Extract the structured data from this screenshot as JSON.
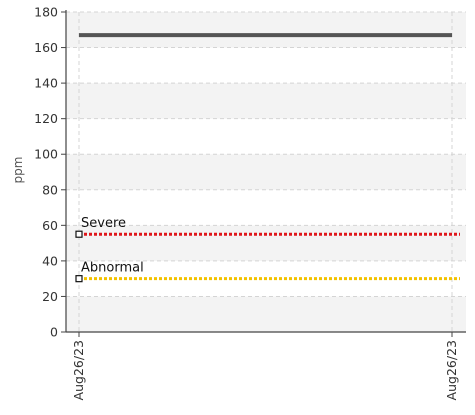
{
  "chart_data": {
    "type": "line",
    "ylabel": "ppm",
    "ylim": [
      0,
      180
    ],
    "y_ticks": [
      0,
      20,
      40,
      60,
      80,
      100,
      120,
      140,
      160,
      180
    ],
    "x_tick_labels": [
      "Aug26/23",
      "Aug26/23"
    ],
    "grid": true,
    "band_colors": [
      "#f3f3f3",
      "#ffffff"
    ],
    "series": [
      {
        "values": [
          167,
          167
        ],
        "color": "#555555"
      }
    ],
    "reference_lines": [
      {
        "label": "Severe",
        "value": 55,
        "color": "#e0161b"
      },
      {
        "label": "Abnormal",
        "value": 30,
        "color": "#f2c200"
      }
    ]
  }
}
